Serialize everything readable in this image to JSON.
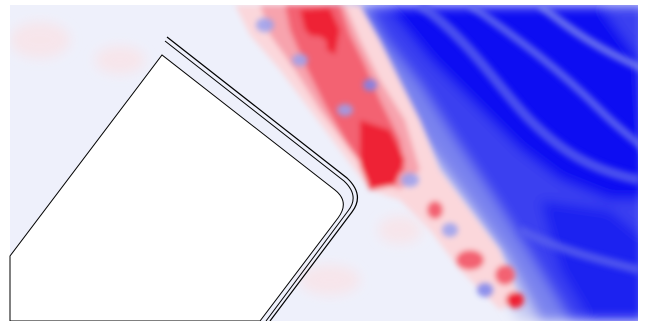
{
  "colors": {
    "background": "#ffffff",
    "field_neutral": "#eef0fb",
    "field_light_blue": "#c8ccf2",
    "field_mid_blue": "#7a83ee",
    "field_blue": "#3a40f0",
    "field_deep_blue": "#0a10f2",
    "field_light_red": "#fbd7db",
    "field_mid_red": "#f7a3ad",
    "field_red": "#f36272",
    "field_deep_red": "#ee2236",
    "body_fill": "#ffffff",
    "outline": "#000000"
  },
  "icons": {
    "body": "square-body-shape",
    "shield": "thin-curved-plate-shape"
  }
}
